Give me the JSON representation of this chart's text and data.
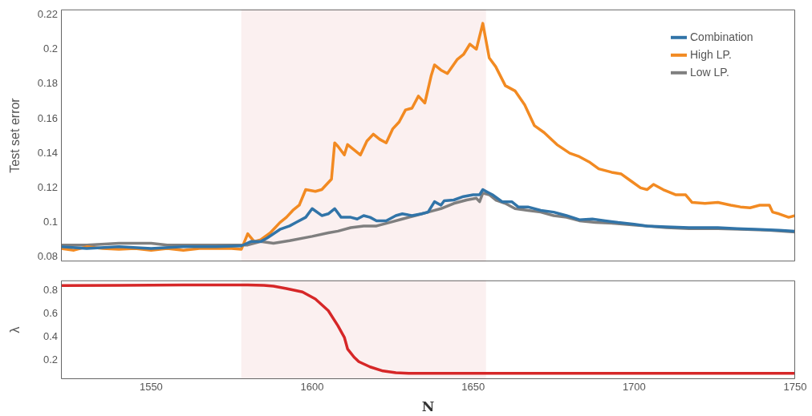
{
  "chart_data": [
    {
      "type": "line",
      "ylabel": "Test set error",
      "xlim": [
        1522,
        1750
      ],
      "xticks": [
        1550,
        1600,
        1650,
        1700,
        1750
      ],
      "ylim": [
        0.0775,
        0.223
      ],
      "yticks": [
        0.08,
        0.1,
        0.12,
        0.14,
        0.16,
        0.18,
        0.2,
        0.22
      ],
      "tick_labels": "y",
      "grid": false,
      "legend": "top right",
      "bands": [
        {
          "axis": "x",
          "from": 1578,
          "to": 1654,
          "color": "#fbf0f0"
        }
      ],
      "series": [
        {
          "name": "Combination",
          "color": "#3174a8",
          "x": [
            1522,
            1530,
            1540,
            1550,
            1560,
            1570,
            1578,
            1581,
            1584,
            1586,
            1590,
            1593,
            1595,
            1598,
            1600,
            1603,
            1605,
            1607,
            1609,
            1612,
            1614,
            1616,
            1618,
            1620,
            1623,
            1626,
            1628,
            1631,
            1634,
            1636,
            1638,
            1640,
            1641,
            1644,
            1647,
            1650,
            1652,
            1653,
            1654,
            1656,
            1659,
            1662,
            1664,
            1667,
            1671,
            1675,
            1679,
            1683,
            1687,
            1691,
            1695,
            1700,
            1704,
            1710,
            1717,
            1722,
            1726,
            1732,
            1739,
            1745,
            1750
          ],
          "values": [
            0.086,
            0.085,
            0.086,
            0.085,
            0.086,
            0.086,
            0.0865,
            0.089,
            0.089,
            0.091,
            0.096,
            0.098,
            0.1,
            0.103,
            0.108,
            0.104,
            0.105,
            0.108,
            0.103,
            0.103,
            0.102,
            0.104,
            0.103,
            0.101,
            0.101,
            0.104,
            0.105,
            0.104,
            0.105,
            0.106,
            0.112,
            0.11,
            0.1125,
            0.113,
            0.115,
            0.116,
            0.116,
            0.119,
            0.118,
            0.116,
            0.112,
            0.112,
            0.109,
            0.109,
            0.107,
            0.106,
            0.104,
            0.1016,
            0.102,
            0.101,
            0.1,
            0.099,
            0.098,
            0.0975,
            0.097,
            0.097,
            0.097,
            0.0965,
            0.096,
            0.0955,
            0.095
          ]
        },
        {
          "name": "High LP.",
          "color": "#f28a22",
          "x": [
            1522,
            1526,
            1530,
            1535,
            1540,
            1545,
            1550,
            1555,
            1560,
            1565,
            1570,
            1575,
            1578,
            1580,
            1582,
            1584,
            1587,
            1590,
            1592,
            1594,
            1596,
            1598,
            1601,
            1603,
            1606,
            1607,
            1608,
            1610,
            1611,
            1613,
            1615,
            1617,
            1619,
            1621,
            1623,
            1625,
            1627,
            1629,
            1631,
            1633,
            1635,
            1637,
            1638,
            1640,
            1642,
            1645,
            1647,
            1649,
            1651,
            1653,
            1655,
            1657,
            1660,
            1663,
            1666,
            1669,
            1672,
            1676,
            1680,
            1683,
            1686,
            1689,
            1693,
            1696,
            1699,
            1702,
            1704,
            1706,
            1709,
            1713,
            1716,
            1718,
            1722,
            1726,
            1730,
            1733,
            1736,
            1739,
            1742,
            1743,
            1745,
            1748,
            1750
          ],
          "values": [
            0.085,
            0.084,
            0.086,
            0.085,
            0.0845,
            0.085,
            0.084,
            0.085,
            0.084,
            0.085,
            0.085,
            0.085,
            0.0845,
            0.0935,
            0.089,
            0.09,
            0.094,
            0.1,
            0.103,
            0.107,
            0.11,
            0.119,
            0.118,
            0.119,
            0.125,
            0.146,
            0.144,
            0.139,
            0.145,
            0.142,
            0.139,
            0.147,
            0.151,
            0.148,
            0.146,
            0.154,
            0.158,
            0.165,
            0.166,
            0.173,
            0.169,
            0.185,
            0.191,
            0.188,
            0.186,
            0.194,
            0.197,
            0.203,
            0.2,
            0.215,
            0.195,
            0.19,
            0.179,
            0.176,
            0.168,
            0.156,
            0.152,
            0.145,
            0.14,
            0.138,
            0.135,
            0.131,
            0.129,
            0.128,
            0.124,
            0.12,
            0.119,
            0.122,
            0.119,
            0.116,
            0.116,
            0.1116,
            0.111,
            0.1116,
            0.11,
            0.109,
            0.1085,
            0.11,
            0.11,
            0.106,
            0.105,
            0.103,
            0.104
          ]
        },
        {
          "name": "Low LP.",
          "color": "#7f7f7f",
          "x": [
            1522,
            1530,
            1540,
            1545,
            1550,
            1555,
            1560,
            1570,
            1580,
            1584,
            1588,
            1593,
            1600,
            1605,
            1608,
            1612,
            1616,
            1620,
            1624,
            1628,
            1632,
            1636,
            1640,
            1644,
            1648,
            1651,
            1652,
            1653,
            1655,
            1657,
            1660,
            1663,
            1667,
            1671,
            1675,
            1679,
            1683,
            1688,
            1694,
            1700,
            1704,
            1710,
            1717,
            1726,
            1735,
            1742,
            1750
          ],
          "values": [
            0.087,
            0.087,
            0.088,
            0.088,
            0.088,
            0.087,
            0.087,
            0.087,
            0.087,
            0.089,
            0.088,
            0.0895,
            0.092,
            0.094,
            0.095,
            0.097,
            0.098,
            0.098,
            0.1,
            0.102,
            0.104,
            0.106,
            0.108,
            0.111,
            0.113,
            0.114,
            0.112,
            0.117,
            0.116,
            0.113,
            0.111,
            0.108,
            0.107,
            0.106,
            0.104,
            0.103,
            0.101,
            0.1,
            0.0995,
            0.0985,
            0.098,
            0.097,
            0.0965,
            0.0965,
            0.096,
            0.0955,
            0.0945
          ]
        }
      ]
    },
    {
      "type": "line",
      "xlabel": "N",
      "ylabel": "λ",
      "xlim": [
        1522,
        1750
      ],
      "xticks": [
        1550,
        1600,
        1650,
        1700,
        1750
      ],
      "ylim": [
        0.04,
        0.89
      ],
      "yticks": [
        0.2,
        0.4,
        0.6,
        0.8
      ],
      "grid": false,
      "bands": [
        {
          "axis": "x",
          "from": 1578,
          "to": 1654,
          "color": "#fbf0f0"
        }
      ],
      "series": [
        {
          "color": "#d62728",
          "x": [
            1522,
            1540,
            1560,
            1580,
            1585,
            1588,
            1592,
            1597,
            1601,
            1605,
            1608,
            1610,
            1611,
            1613,
            1614.5,
            1618,
            1622,
            1626,
            1630,
            1650,
            1700,
            1750
          ],
          "values": [
            0.845,
            0.848,
            0.85,
            0.85,
            0.848,
            0.84,
            0.82,
            0.79,
            0.73,
            0.63,
            0.5,
            0.4,
            0.3,
            0.23,
            0.19,
            0.145,
            0.11,
            0.095,
            0.09,
            0.09,
            0.09,
            0.09
          ]
        }
      ]
    }
  ]
}
